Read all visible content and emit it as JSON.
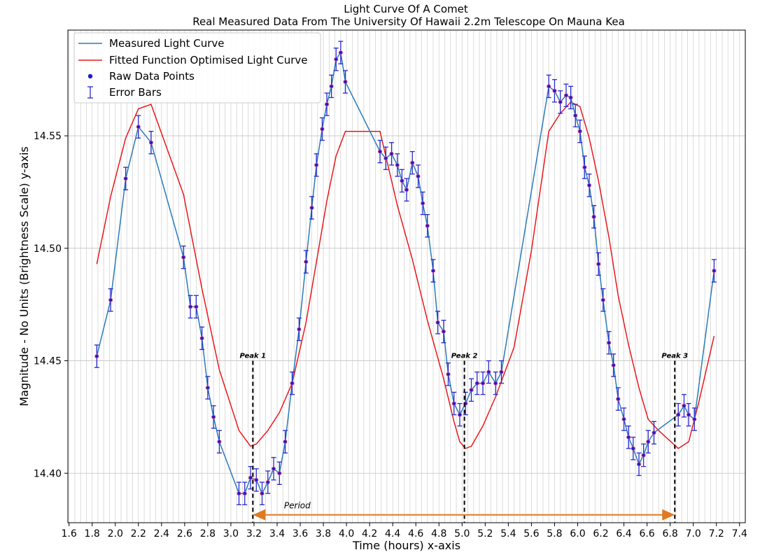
{
  "chart_data": {
    "type": "line",
    "title": "Light Curve Of A Comet",
    "subtitle": "Real Measured Data From The University Of Hawaii 2.2m Telescope On Mauna Kea",
    "xlabel": "Time (hours) x-axis",
    "ylabel": "Magnitude - No Units (Brightness Scale) y-axis",
    "xlim": [
      1.59,
      7.45
    ],
    "ylim": [
      14.378,
      14.597
    ],
    "x_ticks": [
      1.6,
      1.8,
      2.0,
      2.2,
      2.4,
      2.6,
      2.8,
      3.0,
      3.2,
      3.4,
      3.6,
      3.8,
      4.0,
      4.2,
      4.4,
      4.6,
      4.8,
      5.0,
      5.2,
      5.4,
      5.6,
      5.8,
      6.0,
      6.2,
      6.4,
      6.6,
      6.8,
      7.0,
      7.2,
      7.4
    ],
    "x_tick_labels": [
      "1.6",
      "1.8",
      "2.0",
      "2.2",
      "2.4",
      "2.6",
      "2.8",
      "3.0",
      "3.2",
      "3.4",
      "3.6",
      "3.8",
      "4.0",
      "4.2",
      "4.4",
      "4.6",
      "4.8",
      "5.0",
      "5.2",
      "5.4",
      "5.6",
      "5.8",
      "6.0",
      "6.2",
      "6.4",
      "6.6",
      "6.8",
      "7.0",
      "7.2",
      "7.4"
    ],
    "y_ticks": [
      14.4,
      14.45,
      14.5,
      14.55
    ],
    "y_tick_labels": [
      "14.40",
      "14.45",
      "14.50",
      "14.55"
    ],
    "x_minor_grid_step": 0.05,
    "grid": true,
    "legend_position": "top-left",
    "series": [
      {
        "name": "Measured Light Curve",
        "kind": "line",
        "color": "#2a7bb8",
        "x": [
          1.84,
          1.96,
          2.09,
          2.2,
          2.31,
          2.59,
          2.65,
          2.7,
          2.75,
          2.8,
          2.85,
          2.9,
          3.07,
          3.12,
          3.17,
          3.22,
          3.27,
          3.32,
          3.37,
          3.42,
          3.47,
          3.53,
          3.59,
          3.65,
          3.7,
          3.74,
          3.79,
          3.83,
          3.87,
          3.91,
          3.95,
          3.99,
          4.29,
          4.34,
          4.39,
          4.44,
          4.48,
          4.52,
          4.57,
          4.62,
          4.66,
          4.7,
          4.75,
          4.79,
          4.84,
          4.88,
          4.93,
          4.98,
          5.03,
          5.08,
          5.13,
          5.18,
          5.23,
          5.29,
          5.34,
          5.75,
          5.8,
          5.85,
          5.9,
          5.94,
          5.98,
          6.02,
          6.06,
          6.1,
          6.14,
          6.18,
          6.22,
          6.27,
          6.31,
          6.35,
          6.4,
          6.44,
          6.48,
          6.53,
          6.57,
          6.61,
          6.66,
          6.87,
          6.92,
          6.96,
          7.01,
          7.18
        ],
        "y": [
          14.452,
          14.477,
          14.531,
          14.554,
          14.547,
          14.496,
          14.474,
          14.474,
          14.46,
          14.438,
          14.425,
          14.414,
          14.391,
          14.391,
          14.398,
          14.397,
          14.391,
          14.396,
          14.402,
          14.4,
          14.414,
          14.44,
          14.464,
          14.494,
          14.518,
          14.537,
          14.553,
          14.564,
          14.572,
          14.584,
          14.587,
          14.574,
          14.543,
          14.54,
          14.542,
          14.537,
          14.53,
          14.526,
          14.538,
          14.532,
          14.52,
          14.51,
          14.49,
          14.467,
          14.463,
          14.444,
          14.431,
          14.426,
          14.431,
          14.437,
          14.44,
          14.44,
          14.445,
          14.44,
          14.445,
          14.572,
          14.57,
          14.565,
          14.568,
          14.567,
          14.559,
          14.552,
          14.536,
          14.528,
          14.514,
          14.493,
          14.477,
          14.458,
          14.448,
          14.433,
          14.424,
          14.416,
          14.411,
          14.404,
          14.408,
          14.414,
          14.418,
          14.426,
          14.43,
          14.426,
          14.424,
          14.49
        ]
      },
      {
        "name": "Fitted Function Optimised Light Curve",
        "kind": "line",
        "color": "#e8191c",
        "x": [
          1.84,
          1.96,
          2.09,
          2.2,
          2.31,
          2.59,
          2.75,
          2.9,
          3.07,
          3.17,
          3.22,
          3.32,
          3.42,
          3.53,
          3.65,
          3.74,
          3.83,
          3.91,
          3.99,
          4.29,
          4.44,
          4.57,
          4.7,
          4.84,
          4.93,
          4.98,
          5.03,
          5.08,
          5.18,
          5.29,
          5.45,
          5.6,
          5.75,
          5.85,
          5.94,
          6.02,
          6.1,
          6.18,
          6.27,
          6.35,
          6.44,
          6.53,
          6.61,
          6.7,
          6.87,
          6.96,
          7.05,
          7.18
        ],
        "y": [
          14.493,
          14.523,
          14.549,
          14.562,
          14.564,
          14.524,
          14.482,
          14.446,
          14.419,
          14.412,
          14.413,
          14.419,
          14.427,
          14.44,
          14.467,
          14.494,
          14.521,
          14.541,
          14.552,
          14.552,
          14.519,
          14.495,
          14.468,
          14.442,
          14.423,
          14.414,
          14.411,
          14.412,
          14.421,
          14.434,
          14.456,
          14.499,
          14.552,
          14.56,
          14.565,
          14.563,
          14.549,
          14.53,
          14.505,
          14.479,
          14.457,
          14.438,
          14.424,
          14.419,
          14.411,
          14.414,
          14.432,
          14.461
        ]
      }
    ],
    "scatter": {
      "name": "Raw Data Points",
      "marker_color": "#1c1ccc",
      "marker_edge": "#d94f8a"
    },
    "error_bars": {
      "name": "Error Bars",
      "color": "#2828d0",
      "half_width": 0.005
    },
    "annotations": {
      "peaks": [
        {
          "label": "Peak 1",
          "x": 3.19
        },
        {
          "label": "Peak 2",
          "x": 5.02
        },
        {
          "label": "Peak 3",
          "x": 6.84
        }
      ],
      "peak_line_top": 14.45,
      "period_label": "Period",
      "period_arrow": {
        "from": 3.19,
        "to": 6.84,
        "y": 14.3815,
        "color": "#e07a20"
      }
    }
  }
}
